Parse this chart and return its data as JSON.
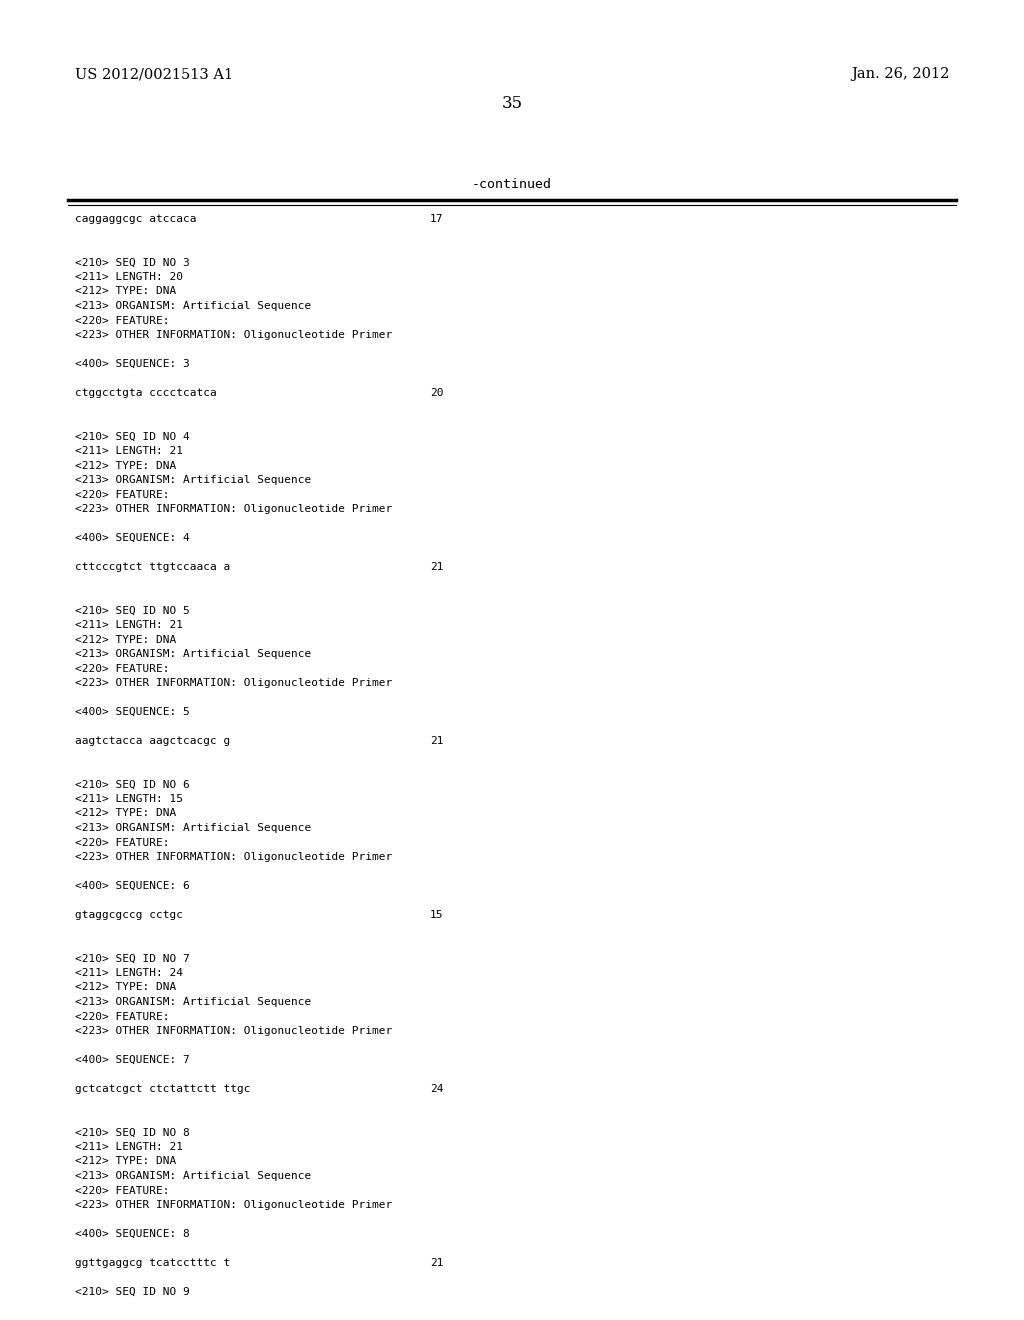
{
  "header_left": "US 2012/0021513 A1",
  "header_right": "Jan. 26, 2012",
  "page_number": "35",
  "continued_label": "-continued",
  "background_color": "#ffffff",
  "text_color": "#000000",
  "content_lines": [
    [
      "caggaggcgc atccaca",
      "17"
    ],
    [
      "",
      null
    ],
    [
      "",
      null
    ],
    [
      "<210> SEQ ID NO 3",
      null
    ],
    [
      "<211> LENGTH: 20",
      null
    ],
    [
      "<212> TYPE: DNA",
      null
    ],
    [
      "<213> ORGANISM: Artificial Sequence",
      null
    ],
    [
      "<220> FEATURE:",
      null
    ],
    [
      "<223> OTHER INFORMATION: Oligonucleotide Primer",
      null
    ],
    [
      "",
      null
    ],
    [
      "<400> SEQUENCE: 3",
      null
    ],
    [
      "",
      null
    ],
    [
      "ctggcctgta cccctcatca",
      "20"
    ],
    [
      "",
      null
    ],
    [
      "",
      null
    ],
    [
      "<210> SEQ ID NO 4",
      null
    ],
    [
      "<211> LENGTH: 21",
      null
    ],
    [
      "<212> TYPE: DNA",
      null
    ],
    [
      "<213> ORGANISM: Artificial Sequence",
      null
    ],
    [
      "<220> FEATURE:",
      null
    ],
    [
      "<223> OTHER INFORMATION: Oligonucleotide Primer",
      null
    ],
    [
      "",
      null
    ],
    [
      "<400> SEQUENCE: 4",
      null
    ],
    [
      "",
      null
    ],
    [
      "cttcccgtct ttgtccaaca a",
      "21"
    ],
    [
      "",
      null
    ],
    [
      "",
      null
    ],
    [
      "<210> SEQ ID NO 5",
      null
    ],
    [
      "<211> LENGTH: 21",
      null
    ],
    [
      "<212> TYPE: DNA",
      null
    ],
    [
      "<213> ORGANISM: Artificial Sequence",
      null
    ],
    [
      "<220> FEATURE:",
      null
    ],
    [
      "<223> OTHER INFORMATION: Oligonucleotide Primer",
      null
    ],
    [
      "",
      null
    ],
    [
      "<400> SEQUENCE: 5",
      null
    ],
    [
      "",
      null
    ],
    [
      "aagtctacca aagctcacgc g",
      "21"
    ],
    [
      "",
      null
    ],
    [
      "",
      null
    ],
    [
      "<210> SEQ ID NO 6",
      null
    ],
    [
      "<211> LENGTH: 15",
      null
    ],
    [
      "<212> TYPE: DNA",
      null
    ],
    [
      "<213> ORGANISM: Artificial Sequence",
      null
    ],
    [
      "<220> FEATURE:",
      null
    ],
    [
      "<223> OTHER INFORMATION: Oligonucleotide Primer",
      null
    ],
    [
      "",
      null
    ],
    [
      "<400> SEQUENCE: 6",
      null
    ],
    [
      "",
      null
    ],
    [
      "gtaggcgccg cctgc",
      "15"
    ],
    [
      "",
      null
    ],
    [
      "",
      null
    ],
    [
      "<210> SEQ ID NO 7",
      null
    ],
    [
      "<211> LENGTH: 24",
      null
    ],
    [
      "<212> TYPE: DNA",
      null
    ],
    [
      "<213> ORGANISM: Artificial Sequence",
      null
    ],
    [
      "<220> FEATURE:",
      null
    ],
    [
      "<223> OTHER INFORMATION: Oligonucleotide Primer",
      null
    ],
    [
      "",
      null
    ],
    [
      "<400> SEQUENCE: 7",
      null
    ],
    [
      "",
      null
    ],
    [
      "gctcatcgct ctctattctt ttgc",
      "24"
    ],
    [
      "",
      null
    ],
    [
      "",
      null
    ],
    [
      "<210> SEQ ID NO 8",
      null
    ],
    [
      "<211> LENGTH: 21",
      null
    ],
    [
      "<212> TYPE: DNA",
      null
    ],
    [
      "<213> ORGANISM: Artificial Sequence",
      null
    ],
    [
      "<220> FEATURE:",
      null
    ],
    [
      "<223> OTHER INFORMATION: Oligonucleotide Primer",
      null
    ],
    [
      "",
      null
    ],
    [
      "<400> SEQUENCE: 8",
      null
    ],
    [
      "",
      null
    ],
    [
      "ggttgaggcg tcatcctttc t",
      "21"
    ],
    [
      "",
      null
    ],
    [
      "<210> SEQ ID NO 9",
      null
    ]
  ]
}
